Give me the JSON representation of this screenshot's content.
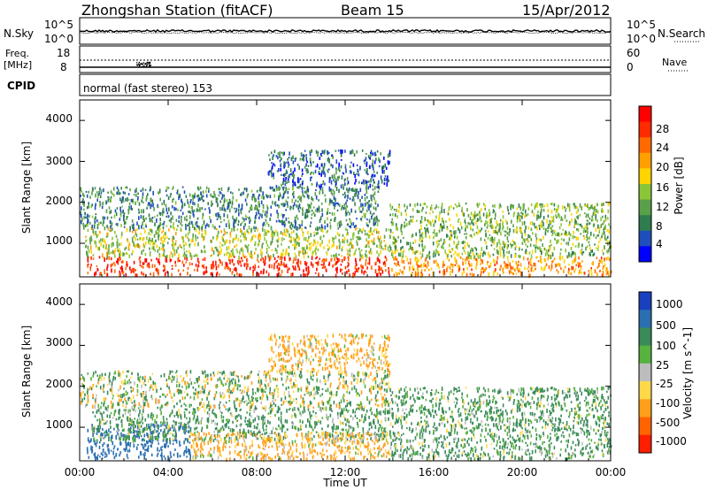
{
  "header": {
    "station": "Zhongshan Station (fitACF)",
    "beam": "Beam 15",
    "date": "15/Apr/2012"
  },
  "top_panels": {
    "nsky_label": "N.Sky",
    "nsearch_label": "N.Search",
    "freq_label_1": "Freq.",
    "freq_label_2": "[MHz]",
    "nave_label": "Nave",
    "cpid_label": "CPID",
    "cpid_value": "normal (fast stereo) 153",
    "noise_ticks": [
      "10^5",
      "10^0"
    ],
    "freq_ticks": [
      "18",
      "8"
    ],
    "nave_ticks": [
      "60",
      "0"
    ],
    "nsearch_ticks": [
      "10^5",
      "10^0"
    ]
  },
  "x_axis": {
    "label": "Time UT",
    "ticks": [
      "00:00",
      "04:00",
      "08:00",
      "12:00",
      "16:00",
      "20:00",
      "00:00"
    ]
  },
  "power_panel": {
    "ylabel": "Slant Range [km]",
    "y_ticks": [
      "4000",
      "3000",
      "2000",
      "1000"
    ],
    "colorbar_label": "Power [dB]",
    "colorbar_ticks": [
      "28",
      "24",
      "20",
      "16",
      "12",
      "8",
      "4"
    ],
    "colors": [
      "#0000ff",
      "#1f4ebc",
      "#2f7d4f",
      "#5aa04a",
      "#8bc63a",
      "#ffd400",
      "#ffa000",
      "#ff6a00",
      "#ff2a00",
      "#ff0000"
    ]
  },
  "velocity_panel": {
    "ylabel": "Slant Range [km]",
    "y_ticks": [
      "4000",
      "3000",
      "2000",
      "1000"
    ],
    "colorbar_label": "Velocity [m s^-1]",
    "colorbar_ticks": [
      "1000",
      "500",
      "100",
      "25",
      "-25",
      "-100",
      "-500",
      "-1000"
    ],
    "colors": [
      "#1a3fbf",
      "#2a6fb0",
      "#3a8a5a",
      "#57b23f",
      "#bdbdbd",
      "#ffd84a",
      "#ff9f1a",
      "#ff6400",
      "#ff1e00"
    ]
  },
  "chart_data": [
    {
      "type": "heatmap",
      "title": "Zhongshan Station (fitACF) Beam 15 15/Apr/2012",
      "variable": "Power [dB]",
      "xlabel": "Time UT",
      "ylabel": "Slant Range [km]",
      "xlim_hours": [
        0,
        24
      ],
      "ylim_km": [
        180,
        4500
      ],
      "colorbar_range": [
        0,
        30
      ],
      "scatter_regions": [
        {
          "time_start": 0.3,
          "time_end": 14.0,
          "range_min": 250,
          "range_max": 700,
          "power_db": 26
        },
        {
          "time_start": 0.2,
          "time_end": 14.0,
          "range_min": 700,
          "range_max": 1400,
          "power_db": 14
        },
        {
          "time_start": 0.0,
          "time_end": 13.5,
          "range_min": 1400,
          "range_max": 2400,
          "power_db": 8
        },
        {
          "time_start": 8.5,
          "time_end": 14.0,
          "range_min": 2400,
          "range_max": 3300,
          "power_db": 6
        },
        {
          "time_start": 14.0,
          "time_end": 24.0,
          "range_min": 250,
          "range_max": 700,
          "power_db": 20
        },
        {
          "time_start": 14.0,
          "time_end": 24.0,
          "range_min": 700,
          "range_max": 2000,
          "power_db": 12
        }
      ]
    },
    {
      "type": "heatmap",
      "variable": "Velocity [m s^-1]",
      "xlabel": "Time UT",
      "ylabel": "Slant Range [km]",
      "xlim_hours": [
        0,
        24
      ],
      "ylim_km": [
        180,
        4500
      ],
      "colorbar_range": [
        -1000,
        1000
      ],
      "scatter_regions": [
        {
          "time_start": 0.3,
          "time_end": 5.0,
          "range_min": 250,
          "range_max": 1100,
          "velocity": 500
        },
        {
          "time_start": 0.5,
          "time_end": 14.0,
          "range_min": 700,
          "range_max": 1500,
          "velocity": 100
        },
        {
          "time_start": 5.0,
          "time_end": 14.0,
          "range_min": 250,
          "range_max": 900,
          "velocity": -100
        },
        {
          "time_start": 0.0,
          "time_end": 14.0,
          "range_min": 1500,
          "range_max": 2400,
          "velocity": 25
        },
        {
          "time_start": 8.5,
          "time_end": 14.0,
          "range_min": 2400,
          "range_max": 3300,
          "velocity": -100
        },
        {
          "time_start": 14.0,
          "time_end": 24.0,
          "range_min": 250,
          "range_max": 2000,
          "velocity": 100
        }
      ]
    }
  ]
}
